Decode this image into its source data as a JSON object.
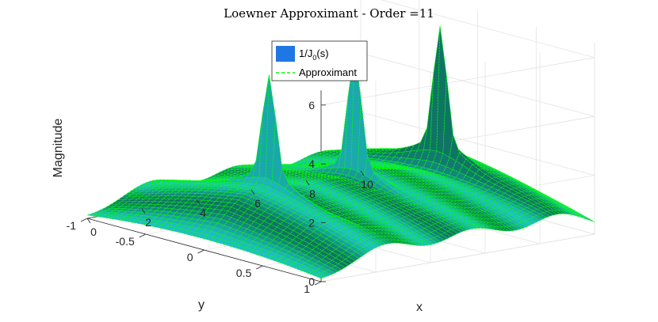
{
  "chart_data": {
    "type": "surface",
    "title": "Loewner Approximant - Order =11",
    "xlabel": "x",
    "ylabel": "y",
    "zlabel": "Magnitude",
    "xlim": [
      0,
      10
    ],
    "ylim": [
      -1,
      1
    ],
    "zlim": [
      0,
      6.5
    ],
    "xticks": [
      "0",
      "2",
      "4",
      "6",
      "8",
      "10"
    ],
    "yticks": [
      "-1",
      "-0.5",
      "0",
      "0.5",
      "1"
    ],
    "zticks": [
      "0",
      "2",
      "4",
      "6"
    ],
    "grid": true,
    "legend_position": "top-center",
    "series": [
      {
        "name": "1/J0(s)",
        "name_main": "1/J",
        "name_sub": "0",
        "name_tail": "(s)",
        "style": "surface",
        "color": "#1f77e4"
      },
      {
        "name": "Approximant",
        "style": "dashed-mesh",
        "color": "#00ff00"
      }
    ],
    "peaks": [
      {
        "x": 2.405,
        "y": 0,
        "z": 5.8
      },
      {
        "x": 5.52,
        "y": 0,
        "z": 5.8
      },
      {
        "x": 8.654,
        "y": 0,
        "z": 6.5
      }
    ]
  }
}
